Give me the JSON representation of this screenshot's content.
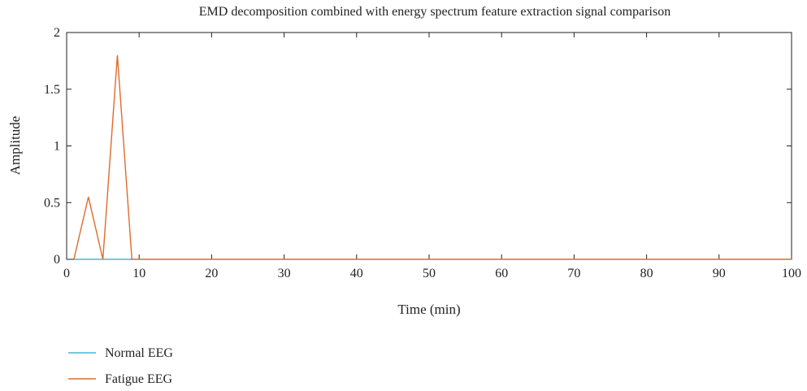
{
  "chart_data": {
    "type": "line",
    "title": "EMD decomposition combined with energy spectrum feature extraction signal comparison",
    "xlabel": "Time (min)",
    "ylabel": "Amplitude",
    "xlim": [
      0,
      100
    ],
    "ylim": [
      0,
      2
    ],
    "xticks": [
      0,
      10,
      20,
      30,
      40,
      50,
      60,
      70,
      80,
      90,
      100
    ],
    "yticks": [
      0,
      0.5,
      1,
      1.5,
      2
    ],
    "xtick_labels": [
      "0",
      "10",
      "20",
      "30",
      "40",
      "50",
      "60",
      "70",
      "80",
      "90",
      "100"
    ],
    "ytick_labels": [
      "0",
      "0.5",
      "1",
      "1.5",
      "2"
    ],
    "grid": false,
    "legend_position": "bottom-left, below plot",
    "series": [
      {
        "name": "Normal EEG",
        "color": "#4db3d9",
        "x": [
          1,
          9
        ],
        "y": [
          0,
          0
        ]
      },
      {
        "name": "Fatigue EEG",
        "color": "#e06a2b",
        "x": [
          1,
          3,
          5,
          7,
          9,
          100
        ],
        "y": [
          0,
          0.55,
          0,
          1.8,
          0,
          0
        ]
      }
    ]
  }
}
